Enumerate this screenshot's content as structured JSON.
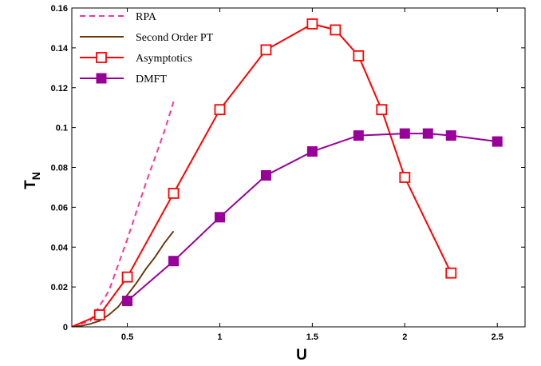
{
  "chart_data": {
    "type": "line",
    "xlabel": "U",
    "ylabel_main": "T",
    "ylabel_sub": "N",
    "xlim": [
      0.2,
      2.65
    ],
    "ylim": [
      0,
      0.16
    ],
    "xticks": [
      0.5,
      1,
      1.5,
      2,
      2.5
    ],
    "xtick_labels": [
      "0.5",
      "1",
      "1.5",
      "2",
      "2.5"
    ],
    "yticks": [
      0,
      0.02,
      0.04,
      0.06,
      0.08,
      0.1,
      0.12,
      0.14,
      0.16
    ],
    "ytick_labels": [
      "0",
      "0.02",
      "0.04",
      "0.06",
      "0.08",
      "0.1",
      "0.12",
      "0.14",
      "0.16"
    ],
    "grid": false,
    "legend_position": "top-left",
    "series": [
      {
        "name": "RPA",
        "style": "dashed",
        "marker": "none",
        "color": "#ff3399",
        "x": [
          0.2,
          0.3,
          0.4,
          0.5,
          0.6,
          0.7,
          0.75
        ],
        "y": [
          0.0,
          0.003,
          0.018,
          0.044,
          0.072,
          0.098,
          0.113
        ]
      },
      {
        "name": "Second Order PT",
        "style": "solid",
        "marker": "none",
        "color": "#6b3a0e",
        "x": [
          0.2,
          0.25,
          0.3,
          0.35,
          0.4,
          0.45,
          0.5,
          0.55,
          0.6,
          0.65,
          0.7,
          0.75
        ],
        "y": [
          0.0,
          0.0005,
          0.0015,
          0.003,
          0.006,
          0.01,
          0.016,
          0.022,
          0.029,
          0.035,
          0.042,
          0.048
        ]
      },
      {
        "name": "Asymptotics",
        "style": "solid",
        "marker": "open-square",
        "color": "#ff0000",
        "x": [
          0.2,
          0.35,
          0.5,
          0.75,
          1.0,
          1.25,
          1.5,
          1.625,
          1.75,
          1.875,
          2.0,
          2.25
        ],
        "y": [
          0.0,
          0.006,
          0.025,
          0.067,
          0.109,
          0.139,
          0.152,
          0.149,
          0.136,
          0.109,
          0.075,
          0.027
        ],
        "marker_from": 1
      },
      {
        "name": "DMFT",
        "style": "solid",
        "marker": "filled-square",
        "color": "#990099",
        "x": [
          0.5,
          0.75,
          1.0,
          1.25,
          1.5,
          1.75,
          2.0,
          2.125,
          2.25,
          2.5
        ],
        "y": [
          0.013,
          0.033,
          0.055,
          0.076,
          0.088,
          0.096,
          0.097,
          0.097,
          0.096,
          0.093
        ],
        "marker_from": 0
      }
    ]
  }
}
